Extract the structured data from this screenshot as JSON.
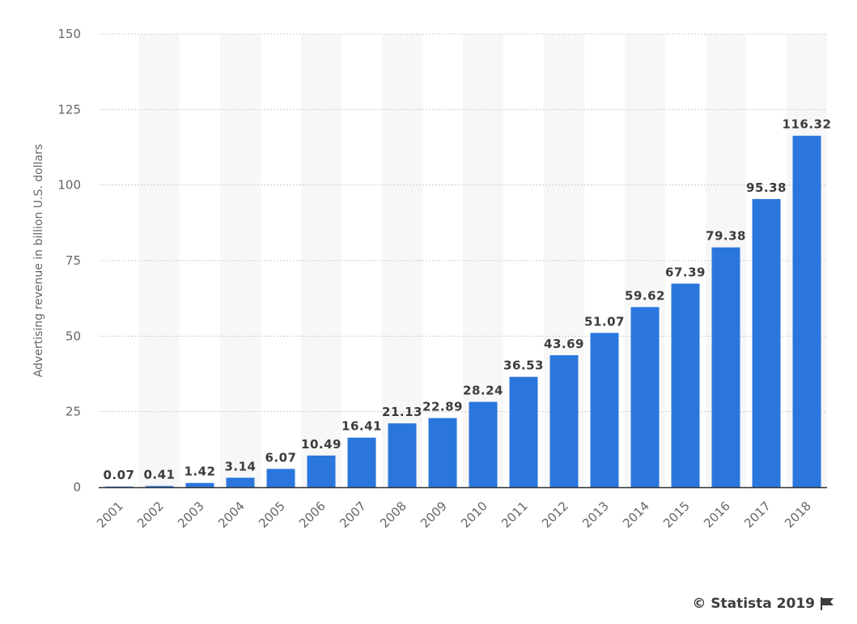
{
  "chart_data": {
    "type": "bar",
    "categories": [
      "2001",
      "2002",
      "2003",
      "2004",
      "2005",
      "2006",
      "2007",
      "2008",
      "2009",
      "2010",
      "2011",
      "2012",
      "2013",
      "2014",
      "2015",
      "2016",
      "2017",
      "2018"
    ],
    "values": [
      0.07,
      0.41,
      1.42,
      3.14,
      6.07,
      10.49,
      16.41,
      21.13,
      22.89,
      28.24,
      36.53,
      43.69,
      51.07,
      59.62,
      67.39,
      79.38,
      95.38,
      116.32
    ],
    "data_labels": [
      "0.07",
      "0.41",
      "1.42",
      "3.14",
      "6.07",
      "10.49",
      "16.41",
      "21.13",
      "22.89",
      "28.24",
      "36.53",
      "43.69",
      "51.07",
      "59.62",
      "67.39",
      "79.38",
      "95.38",
      "116.32"
    ],
    "title": "",
    "xlabel": "",
    "ylabel": "Advertising revenue in billion U.S. dollars",
    "ylim": [
      0,
      150
    ],
    "yticks": [
      "0",
      "25",
      "50",
      "75",
      "100",
      "125",
      "150"
    ],
    "grid": true,
    "bar_color": "#2a76dd",
    "band_color": "#f7f7f7"
  },
  "footer": {
    "credit": "© Statista 2019",
    "credit_icon": "flag-icon"
  }
}
